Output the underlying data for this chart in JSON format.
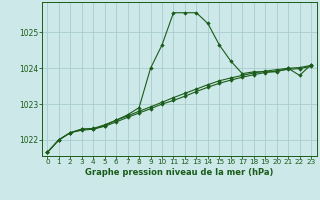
{
  "title": "Graphe pression niveau de la mer (hPa)",
  "background_color": "#cce8e8",
  "grid_color": "#aacccc",
  "line_color": "#1a5c1a",
  "marker_color": "#1a5c1a",
  "xlim": [
    -0.5,
    23.5
  ],
  "ylim": [
    1021.55,
    1025.85
  ],
  "yticks": [
    1022,
    1023,
    1024,
    1025
  ],
  "xticks": [
    0,
    1,
    2,
    3,
    4,
    5,
    6,
    7,
    8,
    9,
    10,
    11,
    12,
    13,
    14,
    15,
    16,
    17,
    18,
    19,
    20,
    21,
    22,
    23
  ],
  "series1": {
    "x": [
      0,
      1,
      2,
      3,
      4,
      5,
      6,
      7,
      8,
      9,
      10,
      11,
      12,
      13,
      14,
      15,
      16,
      17,
      18,
      19,
      20,
      21,
      22,
      23
    ],
    "y": [
      1021.65,
      1022.0,
      1022.2,
      1022.3,
      1022.3,
      1022.4,
      1022.55,
      1022.7,
      1022.9,
      1024.0,
      1024.65,
      1025.55,
      1025.55,
      1025.55,
      1025.25,
      1024.65,
      1024.2,
      1023.85,
      1023.9,
      1023.9,
      1023.9,
      1024.0,
      1023.8,
      1024.1
    ]
  },
  "series2": {
    "x": [
      0,
      1,
      2,
      3,
      4,
      5,
      6,
      7,
      8,
      9,
      10,
      11,
      12,
      13,
      14,
      15,
      16,
      17,
      18,
      19,
      20,
      21,
      22,
      23
    ],
    "y": [
      1021.65,
      1022.0,
      1022.2,
      1022.3,
      1022.32,
      1022.42,
      1022.55,
      1022.67,
      1022.8,
      1022.92,
      1023.05,
      1023.18,
      1023.3,
      1023.42,
      1023.54,
      1023.65,
      1023.73,
      1023.8,
      1023.87,
      1023.92,
      1023.96,
      1024.0,
      1024.02,
      1024.08
    ]
  },
  "series3": {
    "x": [
      0,
      1,
      2,
      3,
      4,
      5,
      6,
      7,
      8,
      9,
      10,
      11,
      12,
      13,
      14,
      15,
      16,
      17,
      18,
      19,
      20,
      21,
      22,
      23
    ],
    "y": [
      1021.65,
      1022.0,
      1022.2,
      1022.27,
      1022.3,
      1022.38,
      1022.5,
      1022.63,
      1022.75,
      1022.87,
      1023.0,
      1023.1,
      1023.22,
      1023.35,
      1023.47,
      1023.58,
      1023.67,
      1023.75,
      1023.82,
      1023.88,
      1023.92,
      1023.97,
      1023.99,
      1024.05
    ]
  }
}
